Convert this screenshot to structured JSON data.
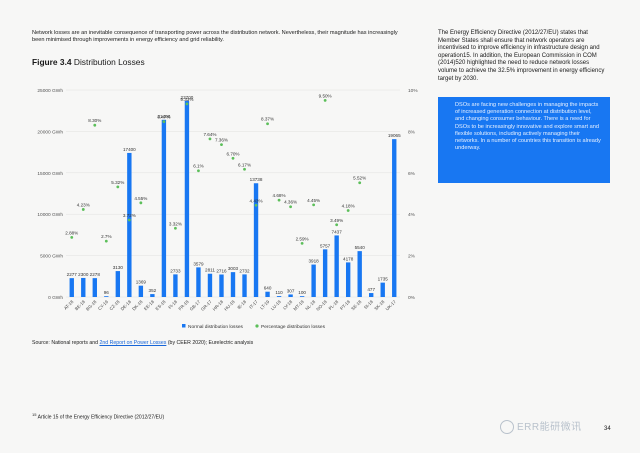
{
  "intro_text": "Network losses are an inevitable consequence of transporting power across the distribution network. Nevertheless, their magnitude has increasingly been minimised through improvements in energy efficiency and grid reliability.",
  "figure": {
    "number": "Figure 3.4",
    "title": "Distribution Losses"
  },
  "source_prefix": "Source: National reports and ",
  "source_link": "2nd Report on Power Losses",
  "source_suffix": " (by CEER 2020); Eurelectric analysis",
  "footnote_marker": "15",
  "footnote_text": "Article 15 of the Energy Efficiency Directive (2012/27/EU)",
  "right_text": "The Energy Efficiency Directive (2012/27/EU) states that Member States shall ensure that network operators are incentivised to improve efficiency in infrastructure design and operation15. In addition, the European Commission in COM (2014)520 highlighted the need to reduce network losses volume to achieve the 32.5% improvement in energy efficiency target by 2030.",
  "callout_text": "DSOs are facing new challenges in managing the impacts of increased generation connection at distribution level, and changing consumer behaviour. There is a need for DSOs to be increasingly innovative and explore smart and flexible solutions, including actively managing their networks. In a number of countries this transition is already underway.",
  "page_number": "34",
  "watermark": "ERR能研微讯",
  "colors": {
    "bar": "#1877f2",
    "dot": "#5cbf5a",
    "callout": "#1877f2",
    "text": "#1a1a1a"
  },
  "chart_data": {
    "type": "bar+scatter",
    "categories": [
      "AT-18",
      "BE-18",
      "BG-18",
      "CY-19",
      "CZ-18",
      "DE-18",
      "DK-18",
      "EE-18",
      "ES-18",
      "FI-18",
      "FR-18",
      "GB-17",
      "GR-17",
      "HR-18",
      "HU-18",
      "IE-18",
      "IT-17",
      "LT-19",
      "LU-18",
      "LV-18",
      "MT-18",
      "NL-18",
      "NO-18",
      "PL-18",
      "PT-18",
      "SE-18",
      "SI-18",
      "SK-18",
      "UK-17"
    ],
    "series": [
      {
        "name": "Normal distribution losses",
        "kind": "bar",
        "axis": "left",
        "values": [
          2277,
          2300,
          2278,
          96,
          3130,
          17400,
          1369,
          352,
          21400,
          2733,
          23700,
          3579,
          2811,
          2716,
          3003,
          2732,
          13738,
          640,
          110,
          307,
          100,
          3918,
          5757,
          7437,
          4178,
          5540,
          477,
          1735,
          19065
        ],
        "labels": [
          "2277",
          "2300",
          "2278",
          "96",
          "3130",
          "17400",
          "1369",
          "352",
          "21400",
          "2733",
          "23700",
          "3579",
          "2811",
          "2716",
          "3003",
          "2732",
          "13738",
          "640",
          "110",
          "307",
          "100",
          "3918",
          "5757",
          "7437",
          "4178",
          "5540",
          "477",
          "1735",
          "19065"
        ]
      },
      {
        "name": "Percentage distribution losses",
        "kind": "scatter",
        "axis": "right",
        "values": [
          2.88,
          4.23,
          8.3,
          2.7,
          5.32,
          3.72,
          4.55,
          8.47,
          3.32,
          9.33,
          6.1,
          7.64,
          7.36,
          6.7,
          6.17,
          4.43,
          8.37,
          4.68,
          4.36,
          2.59,
          4.45,
          9.5,
          3.49,
          4.18,
          5.52
        ],
        "points": [
          [
            0,
            2.88
          ],
          [
            1,
            4.23
          ],
          [
            2,
            8.3
          ],
          [
            3,
            2.7
          ],
          [
            4,
            5.32
          ],
          [
            5,
            3.72
          ],
          [
            6,
            4.55
          ],
          [
            8,
            8.47
          ],
          [
            9,
            3.32
          ],
          [
            10,
            9.33
          ],
          [
            11,
            6.1
          ],
          [
            12,
            7.64
          ],
          [
            13,
            7.36
          ],
          [
            14,
            6.7
          ],
          [
            15,
            6.17
          ],
          [
            16,
            4.43
          ],
          [
            17,
            8.37
          ],
          [
            18,
            4.68
          ],
          [
            19,
            4.36
          ],
          [
            20,
            2.59
          ],
          [
            21,
            4.45
          ],
          [
            22,
            9.5
          ],
          [
            23,
            3.49
          ],
          [
            24,
            4.18
          ],
          [
            25,
            5.52
          ]
        ],
        "labels": [
          "2.88%",
          "4.23%",
          "8.30%",
          "2.7%",
          "5.32%",
          "3.72%",
          "4.55%",
          "8.47%",
          "3.32%",
          "9.33%",
          "6.1%",
          "7.64%",
          "7.36%",
          "6.70%",
          "6.17%",
          "4.43%",
          "8.37%",
          "4.68%",
          "4.36%",
          "2.59%",
          "4.45%",
          "9.50%",
          "3.49%",
          "4.18%",
          "5.52%"
        ]
      }
    ],
    "y_left": {
      "ticks": [
        0,
        5000,
        10000,
        15000,
        20000,
        25000
      ],
      "tick_labels": [
        "0 GWh",
        "5000 GWh",
        "10000 GWh",
        "15000 GWh",
        "20000 GWh",
        "25000 GWh"
      ],
      "range": [
        0,
        25000
      ]
    },
    "y_right": {
      "ticks": [
        0,
        2,
        4,
        6,
        8,
        10
      ],
      "tick_labels": [
        "0%",
        "2%",
        "4%",
        "6%",
        "8%",
        "10%"
      ],
      "range": [
        0,
        10
      ]
    },
    "legend": {
      "placement": "bottom-center",
      "items": [
        "Normal distribution losses",
        "Percentage distribution losses"
      ]
    },
    "grid": true
  }
}
